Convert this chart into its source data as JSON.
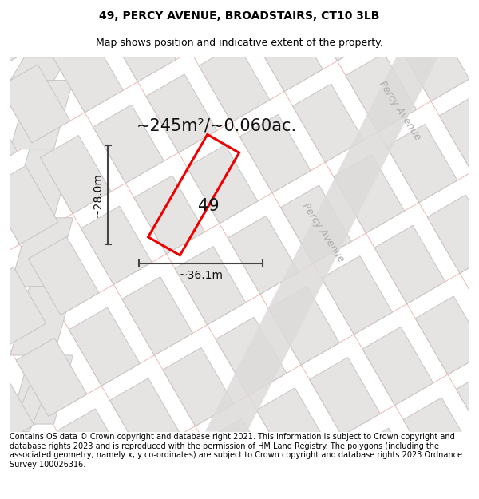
{
  "title_line1": "49, PERCY AVENUE, BROADSTAIRS, CT10 3LB",
  "title_line2": "Map shows position and indicative extent of the property.",
  "footer_text": "Contains OS data © Crown copyright and database right 2021. This information is subject to Crown copyright and database rights 2023 and is reproduced with the permission of HM Land Registry. The polygons (including the associated geometry, namely x, y co-ordinates) are subject to Crown copyright and database rights 2023 Ordnance Survey 100026316.",
  "area_label": "~245m²/~0.060ac.",
  "width_label": "~36.1m",
  "height_label": "~28.0m",
  "plot_number": "49",
  "map_bg": "#f0eeee",
  "building_fill": "#e6e3e3",
  "building_edge": "#c8c4c4",
  "road_fill": "#dddada",
  "pink_line_color": "#e8a8a0",
  "red_plot_color": "#ee0000",
  "dim_line_color": "#444444",
  "percy_ave_color": "#b0acac",
  "title_fontsize": 10,
  "subtitle_fontsize": 9,
  "footer_fontsize": 7,
  "area_fontsize": 15,
  "dim_fontsize": 10,
  "plot_num_fontsize": 15,
  "percy_fontsize": 9
}
